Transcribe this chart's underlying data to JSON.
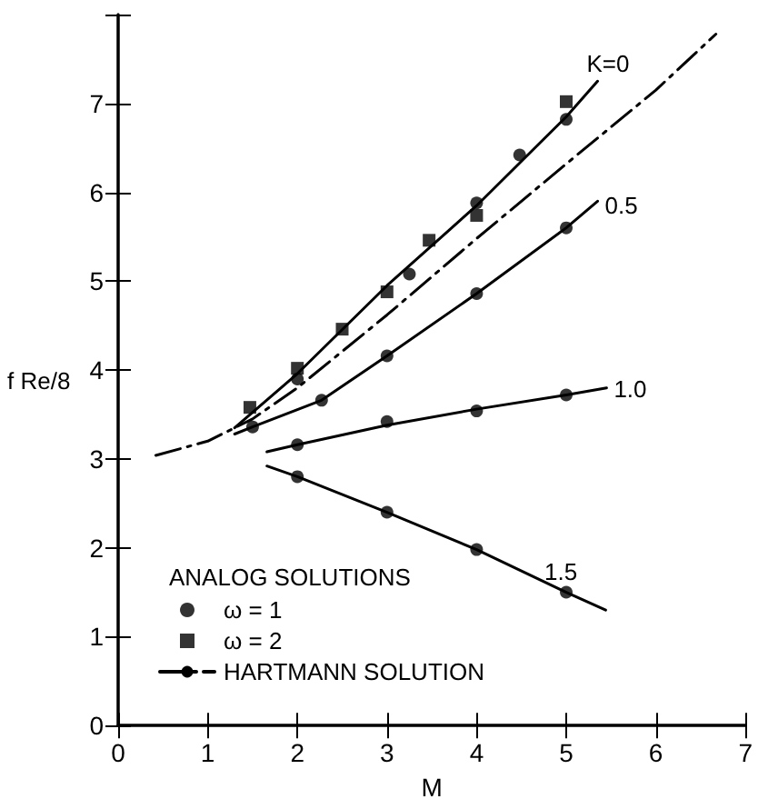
{
  "chart_data": {
    "type": "line",
    "xlabel": "M",
    "ylabel": "f Re/8",
    "legend_title": "ANALOG SOLUTIONS",
    "xlim": [
      0,
      7
    ],
    "ylim": [
      0,
      8
    ],
    "xticks": [
      0,
      1,
      2,
      3,
      4,
      5,
      6,
      7
    ],
    "yticks": [
      0,
      1,
      2,
      3,
      4,
      5,
      6,
      7,
      {
        "value": 8,
        "label": null
      }
    ],
    "grid": false,
    "legend": "bottom left",
    "series": [
      {
        "color": "#000000",
        "marker": "none",
        "line_style": "solid",
        "x": [
          1.3,
          2,
          3,
          4,
          5,
          5.35
        ],
        "values": [
          3.35,
          3.96,
          4.95,
          5.85,
          6.85,
          7.25
        ]
      },
      {
        "color": "#000000",
        "marker": "none",
        "line_style": "solid",
        "x": [
          1.3,
          1.5,
          2.27,
          3,
          4,
          5,
          5.35
        ],
        "values": [
          3.28,
          3.36,
          3.66,
          4.16,
          4.86,
          5.6,
          5.9
        ]
      },
      {
        "color": "#000000",
        "marker": "none",
        "line_style": "solid",
        "x": [
          1.66,
          2,
          3,
          4,
          5,
          5.45
        ],
        "values": [
          3.08,
          3.16,
          3.38,
          3.56,
          3.72,
          3.8
        ]
      },
      {
        "color": "#000000",
        "marker": "none",
        "line_style": "solid",
        "x": [
          1.66,
          2,
          3,
          4,
          5,
          5.44
        ],
        "values": [
          2.92,
          2.8,
          2.4,
          1.98,
          1.5,
          1.3
        ]
      },
      {
        "type": "scatter",
        "name": "ω = 1",
        "color": "#000000",
        "marker": "circle",
        "x": [
          2,
          3.25,
          4,
          4.48,
          5,
          1.5,
          2.27,
          3,
          4,
          5,
          2,
          3,
          4,
          5,
          2,
          3,
          4,
          5
        ],
        "values": [
          3.9,
          5.08,
          5.88,
          6.42,
          6.82,
          3.36,
          3.66,
          4.16,
          4.86,
          5.6,
          3.16,
          3.42,
          3.54,
          3.72,
          2.8,
          2.4,
          1.98,
          1.5
        ]
      },
      {
        "type": "scatter",
        "name": "ω = 2",
        "color": "#000000",
        "marker": "square",
        "x": [
          1.47,
          2,
          2.5,
          3,
          3.47,
          4,
          5
        ],
        "values": [
          3.58,
          4.02,
          4.46,
          4.88,
          5.46,
          5.74,
          7.02
        ]
      },
      {
        "name": "HARTMANN SOLUTION",
        "color": "#000000",
        "marker": "none",
        "line_style": "dashdot",
        "x": [
          0.42,
          1,
          1.5,
          2,
          3,
          4,
          5,
          6,
          6.67
        ],
        "values": [
          3.04,
          3.2,
          3.45,
          3.8,
          4.62,
          5.48,
          6.32,
          7.15,
          7.78
        ]
      }
    ],
    "annotations": [
      "K=0",
      "0.5",
      "1.0",
      "1.5"
    ]
  }
}
